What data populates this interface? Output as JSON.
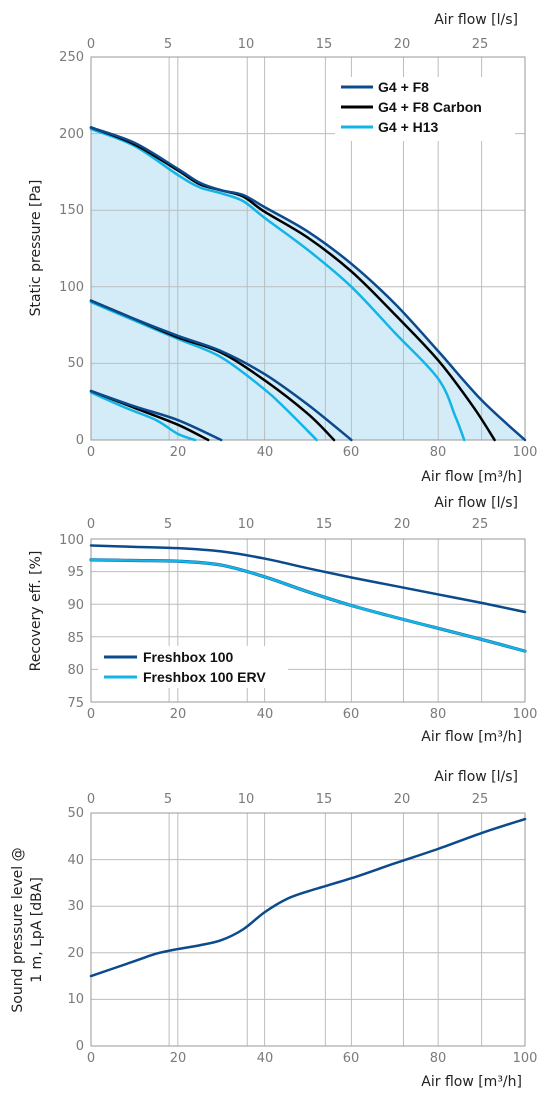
{
  "colors": {
    "dark_blue": "#0b4a8c",
    "black": "#000000",
    "cyan": "#12b5e6",
    "fill": "#d3ecf8",
    "grid": "#bdbdbd",
    "frame": "#9a9a9a"
  },
  "chart_data": [
    {
      "type": "line",
      "xlabel": "Air flow [m³/h]",
      "x2label": "Air flow [l/s]",
      "ylabel": "Static pressure [Pa]",
      "xlim": [
        0,
        100
      ],
      "ylim": [
        0,
        250
      ],
      "x_ticks": [
        0,
        20,
        40,
        60,
        80,
        100
      ],
      "x2_ticks": [
        0,
        5,
        10,
        15,
        20,
        25
      ],
      "y_ticks": [
        0,
        50,
        100,
        150,
        200,
        250
      ],
      "grid": true,
      "shaded_operating_area": true,
      "legend_position": "top-right",
      "series": [
        {
          "name": "G4 + F8",
          "color": "#0b4a8c",
          "curves": [
            [
              [
                0,
                204
              ],
              [
                10,
                194
              ],
              [
                20,
                177
              ],
              [
                25,
                168
              ],
              [
                30,
                163
              ],
              [
                35,
                160
              ],
              [
                40,
                152
              ],
              [
                50,
                136
              ],
              [
                60,
                115
              ],
              [
                70,
                89
              ],
              [
                80,
                58
              ],
              [
                90,
                26
              ],
              [
                100,
                0
              ]
            ],
            [
              [
                0,
                91
              ],
              [
                10,
                79
              ],
              [
                20,
                68
              ],
              [
                30,
                58
              ],
              [
                40,
                43
              ],
              [
                50,
                23
              ],
              [
                60,
                0
              ]
            ],
            [
              [
                0,
                32
              ],
              [
                10,
                22
              ],
              [
                20,
                13
              ],
              [
                30,
                0
              ]
            ]
          ]
        },
        {
          "name": "G4 + F8 Carbon",
          "color": "#000000",
          "curves": [
            [
              [
                0,
                204
              ],
              [
                10,
                193
              ],
              [
                20,
                176
              ],
              [
                25,
                167
              ],
              [
                30,
                163
              ],
              [
                35,
                159
              ],
              [
                40,
                149
              ],
              [
                50,
                132
              ],
              [
                60,
                110
              ],
              [
                70,
                82
              ],
              [
                80,
                52
              ],
              [
                88,
                22
              ],
              [
                93,
                0
              ]
            ],
            [
              [
                0,
                91
              ],
              [
                10,
                79
              ],
              [
                20,
                67
              ],
              [
                30,
                57
              ],
              [
                40,
                39
              ],
              [
                50,
                17
              ],
              [
                56,
                0
              ]
            ],
            [
              [
                0,
                32
              ],
              [
                10,
                21
              ],
              [
                20,
                10
              ],
              [
                27,
                0
              ]
            ]
          ]
        },
        {
          "name": "G4 + H13",
          "color": "#12b5e6",
          "curves": [
            [
              [
                0,
                203
              ],
              [
                10,
                192
              ],
              [
                20,
                173
              ],
              [
                25,
                165
              ],
              [
                30,
                161
              ],
              [
                35,
                156
              ],
              [
                40,
                145
              ],
              [
                50,
                124
              ],
              [
                60,
                100
              ],
              [
                70,
                70
              ],
              [
                80,
                40
              ],
              [
                84,
                15
              ],
              [
                86,
                0
              ]
            ],
            [
              [
                0,
                90
              ],
              [
                10,
                78
              ],
              [
                20,
                66
              ],
              [
                30,
                54
              ],
              [
                40,
                33
              ],
              [
                45,
                20
              ],
              [
                52,
                0
              ]
            ],
            [
              [
                0,
                31
              ],
              [
                8,
                21
              ],
              [
                15,
                13
              ],
              [
                20,
                4
              ],
              [
                24,
                0
              ]
            ]
          ]
        }
      ]
    },
    {
      "type": "line",
      "xlabel": "Air flow [m³/h]",
      "x2label": "Air flow [l/s]",
      "ylabel": "Recovery eff. [%]",
      "xlim": [
        0,
        100
      ],
      "ylim": [
        75,
        100
      ],
      "x_ticks": [
        0,
        20,
        40,
        60,
        80,
        100
      ],
      "x2_ticks": [
        0,
        5,
        10,
        15,
        20,
        25
      ],
      "y_ticks": [
        75,
        80,
        85,
        90,
        95,
        100
      ],
      "grid": true,
      "legend_position": "bottom-left",
      "series": [
        {
          "name": "Freshbox 100",
          "color": "#0b4a8c",
          "x": [
            0,
            10,
            20,
            30,
            40,
            50,
            60,
            70,
            80,
            90,
            100
          ],
          "values": [
            99.0,
            98.8,
            98.6,
            98.1,
            97.0,
            95.5,
            94.1,
            92.8,
            91.5,
            90.2,
            88.8
          ]
        },
        {
          "name": "Freshbox 100 ERV",
          "color": "#12b5e6",
          "x": [
            0,
            10,
            20,
            30,
            40,
            50,
            60,
            70,
            80,
            90,
            100
          ],
          "values": [
            96.8,
            96.7,
            96.6,
            96.0,
            94.2,
            91.9,
            89.8,
            88.0,
            86.3,
            84.6,
            82.8
          ]
        }
      ]
    },
    {
      "type": "line",
      "xlabel": "Air flow [m³/h]",
      "x2label": "Air flow [l/s]",
      "ylabel_line1": "Sound pressure level @",
      "ylabel_line2": "1 m, LpA [dBA]",
      "xlim": [
        0,
        100
      ],
      "ylim": [
        0,
        50
      ],
      "x_ticks": [
        0,
        20,
        40,
        60,
        80,
        100
      ],
      "x2_ticks": [
        0,
        5,
        10,
        15,
        20,
        25
      ],
      "y_ticks": [
        0,
        10,
        20,
        30,
        40,
        50
      ],
      "grid": true,
      "series": [
        {
          "name": "",
          "color": "#0b4a8c",
          "x": [
            0,
            10,
            15,
            20,
            25,
            30,
            35,
            40,
            45,
            50,
            60,
            70,
            80,
            90,
            100
          ],
          "values": [
            15.0,
            18.2,
            19.8,
            20.8,
            21.6,
            22.7,
            25.0,
            28.7,
            31.5,
            33.2,
            36.0,
            39.2,
            42.3,
            45.7,
            48.7
          ]
        }
      ]
    }
  ]
}
